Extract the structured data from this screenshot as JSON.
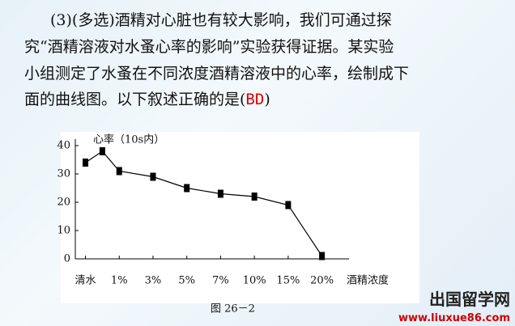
{
  "question": {
    "lines": [
      "(3)(多选)酒精对心脏也有较大影响，我们可通过探",
      "究“酒精溶液对水蚤心率的影响”实验获得证据。某实验",
      "小组测定了水蚤在不同浓度酒精溶液中的心率，绘制成下",
      "面的曲线图。以下叙述正确的是("
    ],
    "answer": "BD",
    "close": ")"
  },
  "chart_data": {
    "type": "line",
    "y_label": "心率（10s内）",
    "x_label": "酒精浓度",
    "caption": "图 26－2",
    "x": [
      0,
      0.5,
      1,
      2,
      3,
      4,
      5,
      6,
      7
    ],
    "values": [
      34,
      38,
      31,
      29,
      25,
      23,
      22,
      19,
      1
    ],
    "color": "#000000",
    "xlim": [
      -0.3,
      7.8
    ],
    "xticks": [
      {
        "value": 0,
        "label": "清水"
      },
      {
        "value": 1,
        "label": "1%"
      },
      {
        "value": 2,
        "label": "3%"
      },
      {
        "value": 3,
        "label": "5%"
      },
      {
        "value": 4,
        "label": "7%"
      },
      {
        "value": 5,
        "label": "10%"
      },
      {
        "value": 6,
        "label": "15%"
      },
      {
        "value": 7,
        "label": "20%"
      }
    ],
    "ylim": [
      0,
      40
    ],
    "yticks": [
      0,
      10,
      20,
      30,
      40
    ]
  },
  "watermark": {
    "name": "出国留学网",
    "url": "www.liuxue86.com"
  }
}
